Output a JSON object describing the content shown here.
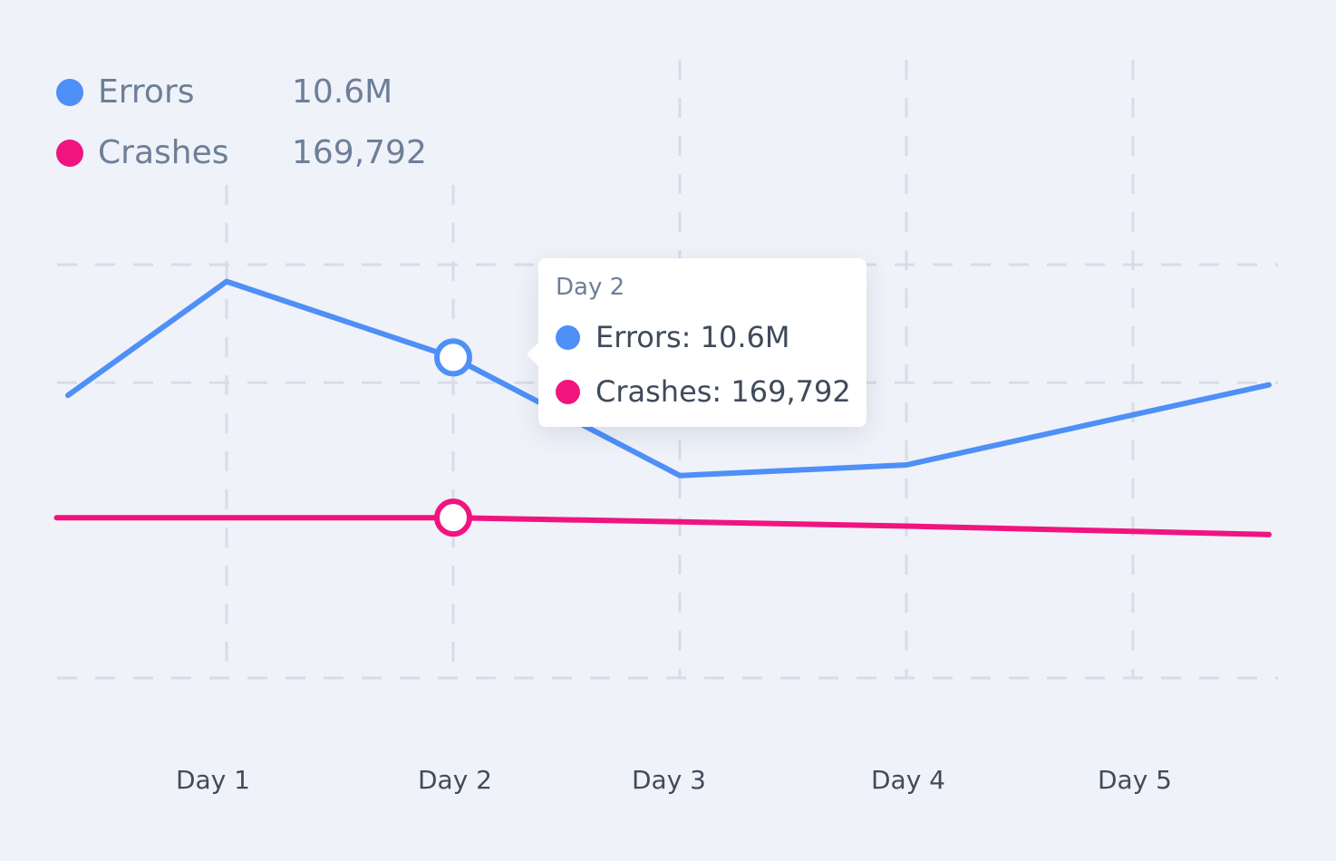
{
  "chart_data": {
    "type": "line",
    "categories": [
      "Day 1",
      "Day 2",
      "Day 3",
      "Day 4",
      "Day 5"
    ],
    "x_range": [
      0.25,
      5.6
    ],
    "series": [
      {
        "name": "Errors",
        "color": "#4e8ff8",
        "points": [
          [
            0.3,
            9.7
          ],
          [
            1.0,
            12.4
          ],
          [
            2.0,
            10.6
          ],
          [
            3.0,
            7.8
          ],
          [
            4.0,
            8.05
          ],
          [
            5.6,
            9.95
          ]
        ]
      },
      {
        "name": "Crashes",
        "color": "#f0147f",
        "points": [
          [
            0.25,
            6.8
          ],
          [
            1.0,
            6.8
          ],
          [
            2.0,
            6.8
          ],
          [
            3.0,
            6.7
          ],
          [
            4.0,
            6.6
          ],
          [
            5.6,
            6.4
          ]
        ]
      }
    ],
    "ylim": [
      3,
      12.8
    ],
    "y_gridlines": [
      5,
      10
    ],
    "highlight_x": 2.0,
    "grid": true
  },
  "legend": {
    "items": [
      {
        "label": "Errors",
        "value": "10.6M",
        "color": "#4e8ff8"
      },
      {
        "label": "Crashes",
        "value": "169,792",
        "color": "#f0147f"
      }
    ]
  },
  "tooltip": {
    "title": "Day 2",
    "rows": [
      {
        "text": "Errors: 10.6M",
        "color": "#4e8ff8"
      },
      {
        "text": "Crashes: 169,792",
        "color": "#f0147f"
      }
    ]
  }
}
